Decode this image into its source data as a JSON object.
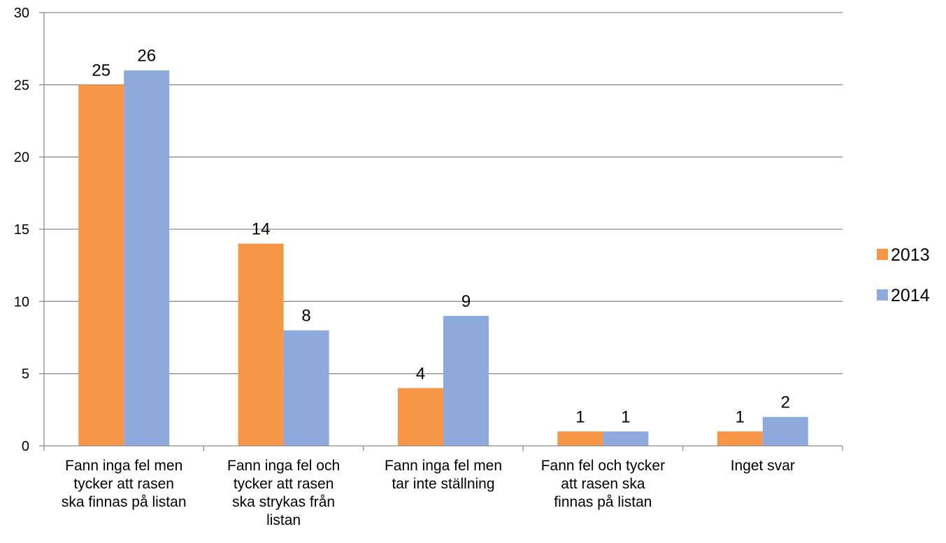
{
  "chart_data": {
    "type": "bar",
    "title": "",
    "xlabel": "",
    "ylabel": "",
    "ylim": [
      0,
      30
    ],
    "yticks": [
      0,
      5,
      10,
      15,
      20,
      25,
      30
    ],
    "grid": true,
    "legend_position": "right",
    "categories": [
      "Fann inga fel men tycker att rasen ska finnas på listan",
      "Fann inga fel och tycker att rasen ska strykas från listan",
      "Fann inga fel men tar inte ställning",
      "Fann fel och tycker att rasen ska finnas på listan",
      "Inget svar"
    ],
    "category_lines": [
      [
        "Fann inga fel men",
        "tycker att rasen",
        "ska finnas på listan"
      ],
      [
        "Fann inga fel och",
        "tycker att rasen",
        "ska strykas från",
        "listan"
      ],
      [
        "Fann inga fel men",
        "tar inte ställning"
      ],
      [
        "Fann fel och tycker",
        "att rasen ska",
        "finnas på listan"
      ],
      [
        "Inget svar"
      ]
    ],
    "series": [
      {
        "name": "2013",
        "color": "#f79646",
        "values": [
          25,
          14,
          4,
          1,
          1
        ]
      },
      {
        "name": "2014",
        "color": "#8eaadc",
        "values": [
          26,
          8,
          9,
          1,
          2
        ]
      }
    ]
  }
}
